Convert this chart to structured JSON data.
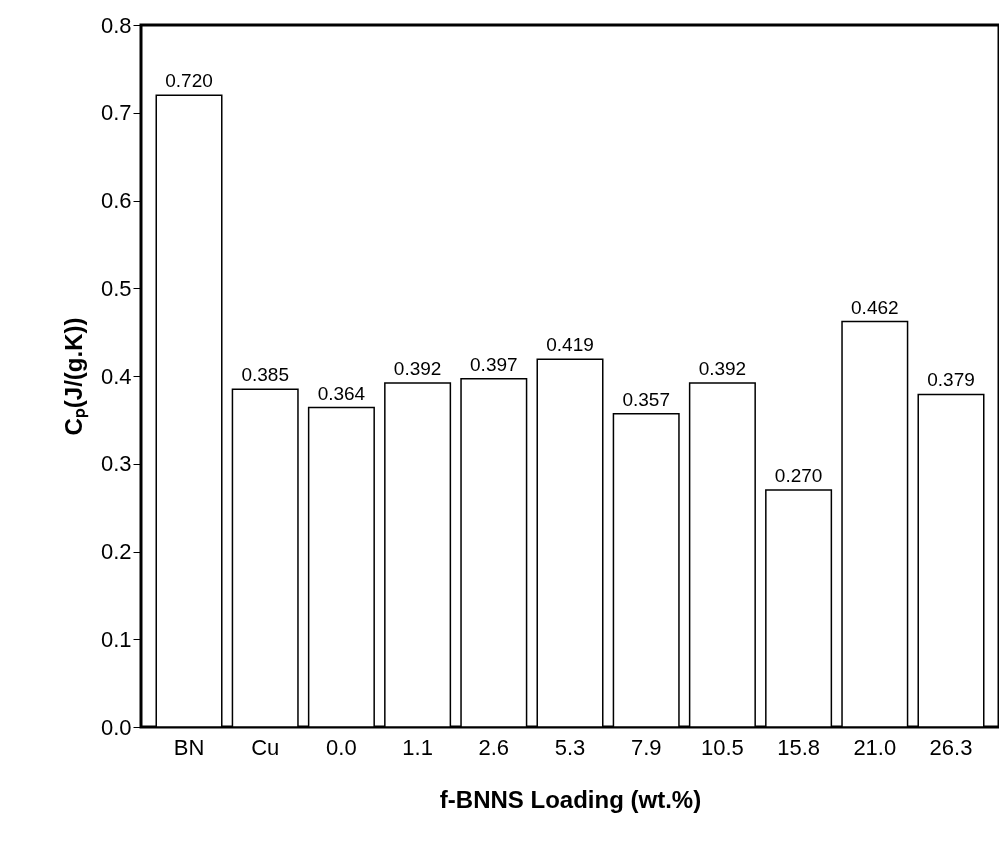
{
  "chart_data": {
    "type": "bar",
    "xlabel": "f-BNNS Loading (wt.%)",
    "ylabel": "Cₚ(J/(g.K))",
    "categories": [
      "BN",
      "Cu",
      "0.0",
      "1.1",
      "2.6",
      "5.3",
      "7.9",
      "10.5",
      "15.8",
      "21.0",
      "26.3"
    ],
    "values": [
      0.72,
      0.385,
      0.364,
      0.392,
      0.397,
      0.419,
      0.357,
      0.392,
      0.27,
      0.462,
      0.379
    ],
    "value_labels": [
      "0.720",
      "0.385",
      "0.364",
      "0.392",
      "0.397",
      "0.419",
      "0.357",
      "0.392",
      "0.270",
      "0.462",
      "0.379"
    ],
    "color": "#ffffff",
    "ylim": [
      0,
      0.8
    ],
    "yticks": [
      {
        "value": 0,
        "label": "0.0"
      },
      {
        "value": 0.1,
        "label": "0.1"
      },
      {
        "value": 0.2,
        "label": "0.2"
      },
      {
        "value": 0.3,
        "label": "0.3"
      },
      {
        "value": 0.4,
        "label": "0.4"
      },
      {
        "value": 0.5,
        "label": "0.5"
      },
      {
        "value": 0.6,
        "label": "0.6"
      },
      {
        "value": 0.7,
        "label": "0.7"
      },
      {
        "value": 0.8,
        "label": "0.8"
      }
    ],
    "grid": false
  }
}
